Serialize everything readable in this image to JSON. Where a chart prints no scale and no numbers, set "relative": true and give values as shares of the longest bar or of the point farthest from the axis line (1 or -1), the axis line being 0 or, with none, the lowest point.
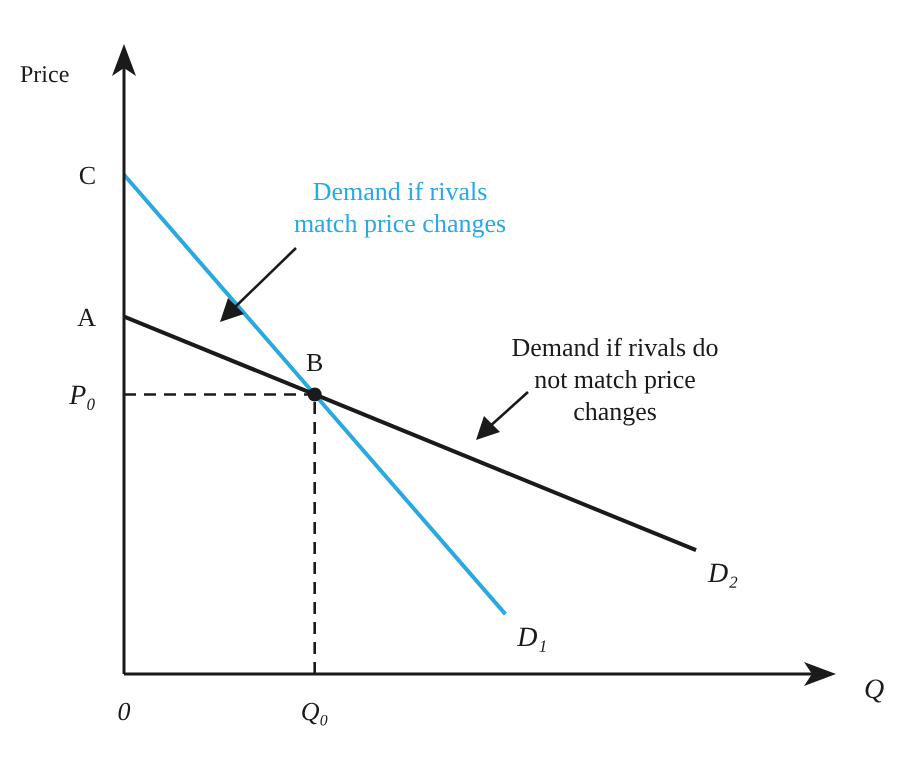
{
  "chart_data": {
    "type": "line",
    "relative": true,
    "ylabel": "Price",
    "xlabel": "Q",
    "categories": [
      "0",
      "Q₀",
      null,
      null
    ],
    "marker": "none",
    "line_style": "solid",
    "series": [
      {
        "name": "D₁",
        "color": "#29a9e0",
        "values": [
          1,
          0.56,
          0.12,
          null
        ]
      },
      {
        "name": "D₂",
        "color": "#1a1a1a",
        "values": [
          0.716,
          0.56,
          0.404,
          0.248
        ]
      }
    ],
    "ref_lines": [
      {
        "axis": "y",
        "value": 0.56,
        "label": "P₀",
        "color": "#1a1a1a",
        "line_style": "dashed"
      },
      {
        "axis": "x",
        "value": "Q₀",
        "color": "#1a1a1a",
        "line_style": "dashed"
      }
    ],
    "annotations": [
      "Demand if rivals match price changes",
      "Demand if rivals do not match price changes",
      "C",
      "A",
      {
        "text": "B",
        "x": "Q₀",
        "y": 0.56
      }
    ]
  }
}
